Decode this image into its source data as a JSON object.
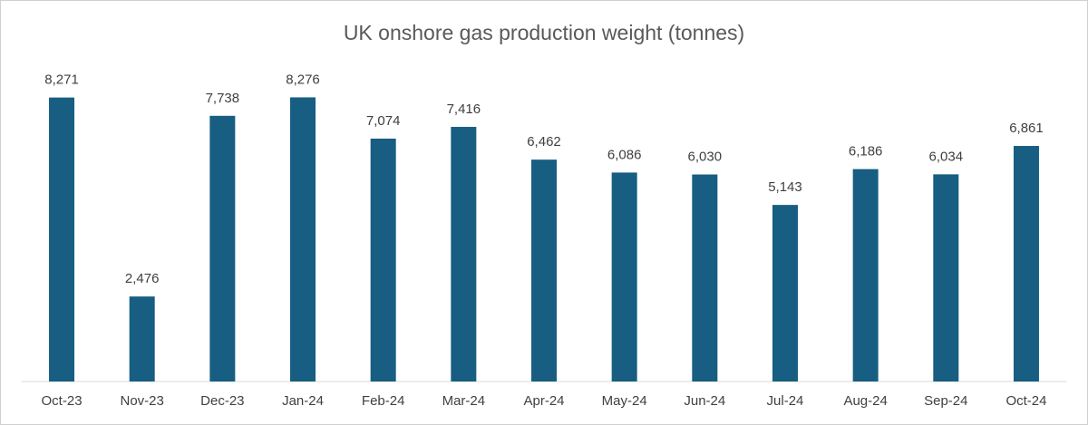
{
  "chart_data": {
    "type": "bar",
    "title": "UK onshore gas production weight (tonnes)",
    "categories": [
      "Oct-23",
      "Nov-23",
      "Dec-23",
      "Jan-24",
      "Feb-24",
      "Mar-24",
      "Apr-24",
      "May-24",
      "Jun-24",
      "Jul-24",
      "Aug-24",
      "Sep-24",
      "Oct-24"
    ],
    "values": [
      8271,
      2476,
      7738,
      8276,
      7074,
      7416,
      6462,
      6086,
      6030,
      5143,
      6186,
      6034,
      6861
    ],
    "value_labels": [
      "8,271",
      "2,476",
      "7,738",
      "8,276",
      "7,074",
      "7,416",
      "6,462",
      "6,086",
      "6,030",
      "5,143",
      "6,186",
      "6,034",
      "6,861"
    ],
    "color": "#175e82",
    "ylim": [
      0,
      9000
    ]
  }
}
